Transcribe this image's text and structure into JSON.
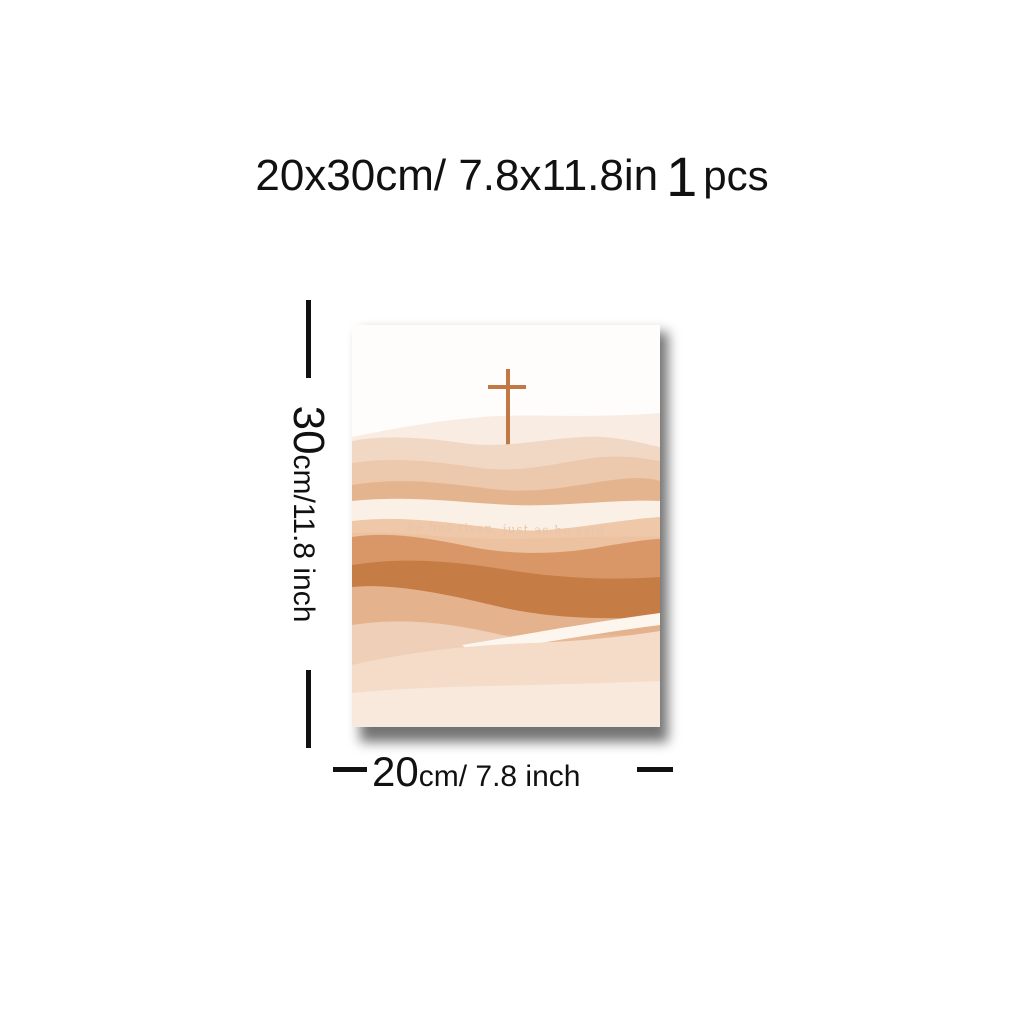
{
  "headline": {
    "size": "20x30cm/ 7.8x11.8in",
    "quantity": "1",
    "unit": "pcs"
  },
  "poster": {
    "text": "he has risen, just as he said",
    "cross_color": "#c17845",
    "palette": [
      "#f3e2d3",
      "#ecc9ad",
      "#e2a981",
      "#cf8a57",
      "#c67c45",
      "#f6e6d8"
    ]
  },
  "dimensions": {
    "height_big": "30",
    "height_small": "cm/11.8 inch",
    "width_big": "20",
    "width_small": "cm/ 7.8 inch"
  }
}
